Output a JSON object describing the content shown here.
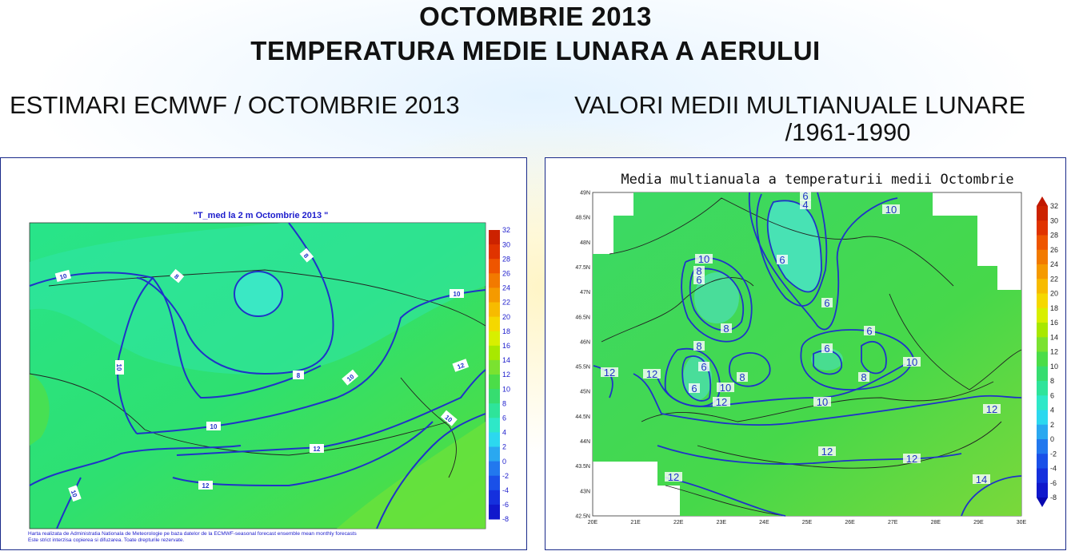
{
  "header": {
    "title_line1": "OCTOMBRIE 2013",
    "title_line2": "TEMPERATURA MEDIE LUNARA A AERULUI"
  },
  "left_panel": {
    "subtitle": "ESTIMARI ECMWF / OCTOMBRIE 2013",
    "map_title": "\"T_med la 2 m Octombrie 2013 \"",
    "colorbar_ticks": [
      "32",
      "30",
      "28",
      "26",
      "24",
      "22",
      "20",
      "18",
      "16",
      "14",
      "12",
      "10",
      "8",
      "6",
      "4",
      "2",
      "0",
      "-2",
      "-4",
      "-6",
      "-8"
    ],
    "contour_labels": [
      "10",
      "8",
      "8",
      "10",
      "10",
      "10",
      "8",
      "10",
      "12",
      "10",
      "12",
      "12",
      "10",
      "14"
    ],
    "footer_line1": "Harta realizata de Administratia Nationala de Meteorologie pe baza datelor de la ECMWF-seasonal forecast ensemble mean monthly forecasts",
    "footer_line2": "Este strict interzisa copierea si difuzarea. Toate drepturile rezervate."
  },
  "right_panel": {
    "subtitle_line1": "VALORI MEDII MULTIANUALE LUNARE",
    "subtitle_line2": "/1961-1990",
    "map_title": "Media multianuala a temperaturii medii Octombrie",
    "lat_ticks": [
      "49N",
      "48.5N",
      "48N",
      "47.5N",
      "47N",
      "46.5N",
      "46N",
      "45.5N",
      "45N",
      "44.5N",
      "44N",
      "43.5N",
      "43N",
      "42.5N"
    ],
    "lon_ticks": [
      "20E",
      "21E",
      "22E",
      "23E",
      "24E",
      "25E",
      "26E",
      "27E",
      "28E",
      "29E",
      "30E"
    ],
    "colorbar_ticks": [
      "32",
      "30",
      "28",
      "26",
      "24",
      "22",
      "20",
      "18",
      "16",
      "14",
      "12",
      "10",
      "8",
      "6",
      "4",
      "2",
      "0",
      "-2",
      "-4",
      "-6",
      "-8"
    ],
    "contour_labels": [
      "6",
      "4",
      "10",
      "10",
      "8",
      "6",
      "6",
      "8",
      "6",
      "8",
      "6",
      "6",
      "8",
      "8",
      "10",
      "12",
      "12",
      "6",
      "8",
      "10",
      "12",
      "10",
      "12",
      "12",
      "12",
      "14",
      "10"
    ]
  },
  "colors": {
    "map_green": "#33dd55",
    "map_teal": "#33e6b0",
    "contour": "#1f33c8"
  }
}
